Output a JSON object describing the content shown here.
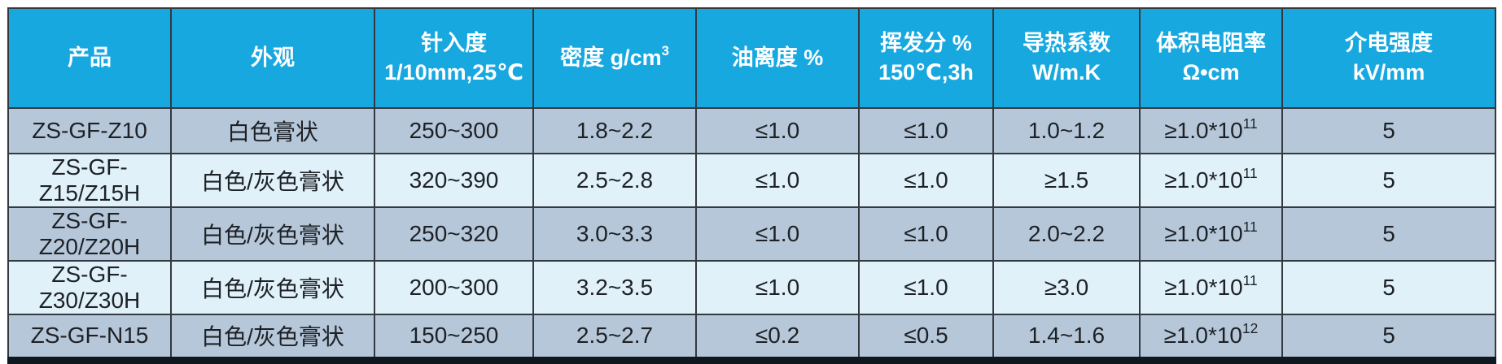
{
  "colors": {
    "header-bg": "#18a8e0",
    "row-odd-bg": "#b6c7d9",
    "row-even-bg": "#e0f1f9",
    "grid-border": "#34393f",
    "bottom-bar": "#10181f",
    "header-text": "#ffffff",
    "body-text": "#1d2126"
  },
  "table": {
    "columns": [
      {
        "id": "product",
        "line1": "产品"
      },
      {
        "id": "appearance",
        "line1": "外观"
      },
      {
        "id": "penetration",
        "line1": "针入度",
        "line2": "1/10mm,25℃"
      },
      {
        "id": "density",
        "line1": "密度 g/cm",
        "sup": "3"
      },
      {
        "id": "oil-separation",
        "line1": "油离度 %"
      },
      {
        "id": "volatile-matter",
        "line1": "挥发分 %",
        "line2": "150℃,3h"
      },
      {
        "id": "thermal-conductivity",
        "line1": "导热系数",
        "line2": "W/m.K"
      },
      {
        "id": "volume-resistivity",
        "line1": "体积电阻率",
        "line2": "Ω•cm"
      },
      {
        "id": "dielectric-strength",
        "line1": "介电强度",
        "line2": "kV/mm"
      }
    ],
    "rows": [
      {
        "cells": [
          {
            "t": "ZS-GF-Z10"
          },
          {
            "t": "白色膏状"
          },
          {
            "t": "250~300"
          },
          {
            "t": "1.8~2.2"
          },
          {
            "t": "≤1.0"
          },
          {
            "t": "≤1.0"
          },
          {
            "t": "1.0~1.2"
          },
          {
            "t": "≥1.0*10",
            "sup": "11"
          },
          {
            "t": "5"
          }
        ]
      },
      {
        "cells": [
          {
            "t": "ZS-GF-Z15/Z15H"
          },
          {
            "t": "白色/灰色膏状"
          },
          {
            "t": "320~390"
          },
          {
            "t": "2.5~2.8"
          },
          {
            "t": "≤1.0"
          },
          {
            "t": "≤1.0"
          },
          {
            "t": "≥1.5"
          },
          {
            "t": "≥1.0*10",
            "sup": "11"
          },
          {
            "t": "5"
          }
        ]
      },
      {
        "cells": [
          {
            "t": "ZS-GF-Z20/Z20H"
          },
          {
            "t": "白色/灰色膏状"
          },
          {
            "t": "250~320"
          },
          {
            "t": "3.0~3.3"
          },
          {
            "t": "≤1.0"
          },
          {
            "t": "≤1.0"
          },
          {
            "t": "2.0~2.2"
          },
          {
            "t": "≥1.0*10",
            "sup": "11"
          },
          {
            "t": "5"
          }
        ]
      },
      {
        "cells": [
          {
            "t": "ZS-GF-Z30/Z30H"
          },
          {
            "t": "白色/灰色膏状"
          },
          {
            "t": "200~300"
          },
          {
            "t": "3.2~3.5"
          },
          {
            "t": "≤1.0"
          },
          {
            "t": "≤1.0"
          },
          {
            "t": "≥3.0"
          },
          {
            "t": "≥1.0*10",
            "sup": "11"
          },
          {
            "t": "5"
          }
        ]
      },
      {
        "cells": [
          {
            "t": "ZS-GF-N15"
          },
          {
            "t": "白色/灰色膏状"
          },
          {
            "t": "150~250"
          },
          {
            "t": "2.5~2.7"
          },
          {
            "t": "≤0.2"
          },
          {
            "t": "≤0.5"
          },
          {
            "t": "1.4~1.6"
          },
          {
            "t": "≥1.0*10",
            "sup": "12"
          },
          {
            "t": "5"
          }
        ]
      }
    ]
  }
}
